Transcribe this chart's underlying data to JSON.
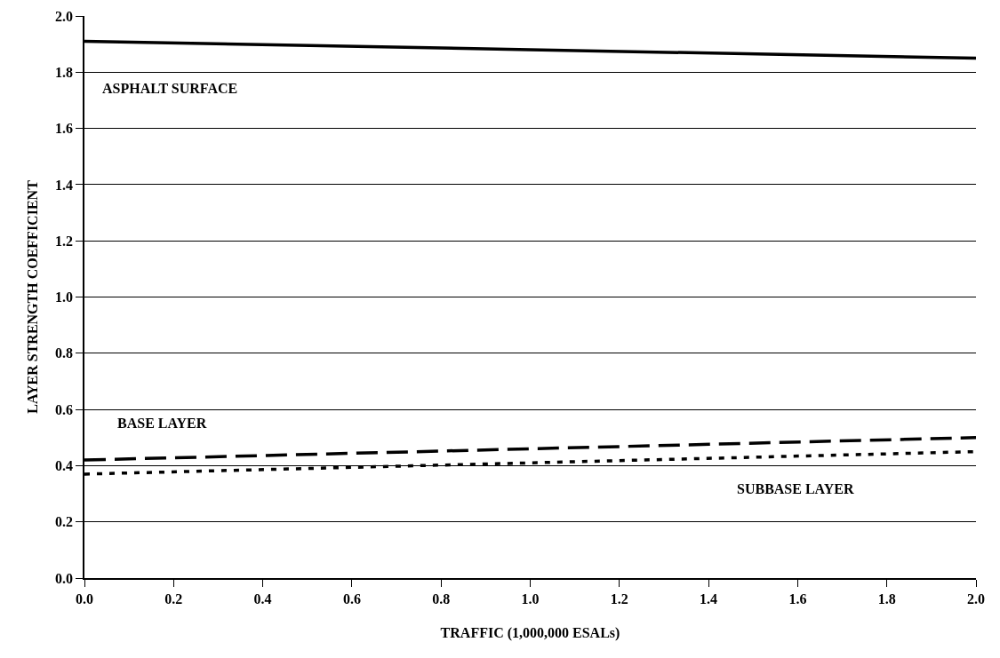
{
  "chart_data": {
    "type": "line",
    "xlabel": "TRAFFIC (1,000,000 ESALs)",
    "ylabel": "LAYER STRENGTH COEFFICIENT",
    "x": [
      0,
      1,
      2
    ],
    "series": [
      {
        "name": "ASPHALT SURFACE",
        "color": "#000000",
        "line_style": "solid",
        "values": [
          1.91,
          1.88,
          1.85
        ]
      },
      {
        "name": "BASE LAYER",
        "color": "#000000",
        "line_style": "dashed",
        "values": [
          0.42,
          0.46,
          0.5
        ]
      },
      {
        "name": "SUBBASE LAYER",
        "color": "#000000",
        "line_style": "dotted",
        "values": [
          0.37,
          0.41,
          0.45
        ]
      }
    ],
    "xlim": [
      0,
      2
    ],
    "ylim": [
      0,
      2
    ],
    "xticks": [
      {
        "value": 0,
        "label": "0.0"
      },
      0.2,
      0.4,
      0.6,
      0.8,
      {
        "value": 1,
        "label": "1.0"
      },
      1.2,
      1.4,
      1.6,
      1.8,
      {
        "value": 2,
        "label": "2.0"
      }
    ],
    "yticks": [
      {
        "value": 0,
        "label": "0.0"
      },
      0.2,
      0.4,
      0.6,
      0.8,
      {
        "value": 1,
        "label": "1.0"
      },
      1.2,
      1.4,
      1.6,
      1.8,
      {
        "value": 2,
        "label": "2.0"
      }
    ],
    "grid": "y",
    "legend": false,
    "marker": "none"
  }
}
